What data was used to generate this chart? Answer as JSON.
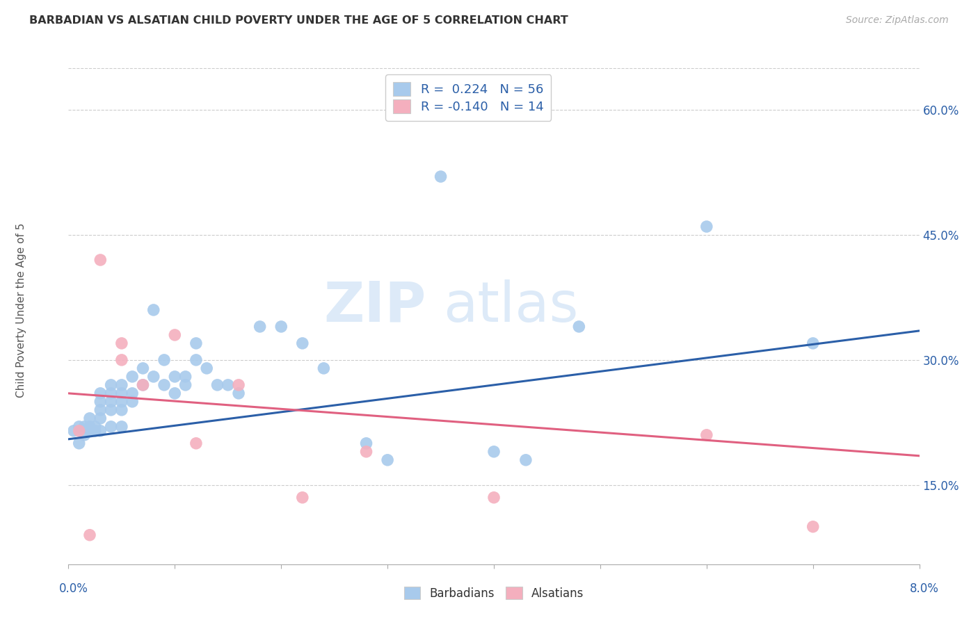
{
  "title": "BARBADIAN VS ALSATIAN CHILD POVERTY UNDER THE AGE OF 5 CORRELATION CHART",
  "source": "Source: ZipAtlas.com",
  "ylabel": "Child Poverty Under the Age of 5",
  "ytick_vals": [
    0.15,
    0.3,
    0.45,
    0.6
  ],
  "ytick_labels": [
    "15.0%",
    "30.0%",
    "45.0%",
    "60.0%"
  ],
  "xlim": [
    0.0,
    0.08
  ],
  "ylim": [
    0.055,
    0.65
  ],
  "watermark_line1": "ZIP",
  "watermark_line2": "atlas",
  "blue_scatter_color": "#A8CAEC",
  "pink_scatter_color": "#F4AFBE",
  "blue_line_color": "#2B5FA8",
  "pink_line_color": "#E06080",
  "barbadians_x": [
    0.0005,
    0.001,
    0.001,
    0.0015,
    0.0015,
    0.002,
    0.002,
    0.002,
    0.0025,
    0.0025,
    0.003,
    0.003,
    0.003,
    0.003,
    0.003,
    0.004,
    0.004,
    0.004,
    0.004,
    0.004,
    0.005,
    0.005,
    0.005,
    0.005,
    0.005,
    0.006,
    0.006,
    0.006,
    0.007,
    0.007,
    0.008,
    0.008,
    0.009,
    0.009,
    0.01,
    0.01,
    0.011,
    0.011,
    0.012,
    0.012,
    0.013,
    0.014,
    0.015,
    0.016,
    0.018,
    0.02,
    0.022,
    0.024,
    0.028,
    0.03,
    0.035,
    0.04,
    0.043,
    0.048,
    0.06,
    0.07
  ],
  "barbadians_y": [
    0.215,
    0.22,
    0.2,
    0.22,
    0.21,
    0.23,
    0.22,
    0.215,
    0.22,
    0.215,
    0.26,
    0.25,
    0.24,
    0.23,
    0.215,
    0.27,
    0.26,
    0.25,
    0.24,
    0.22,
    0.27,
    0.26,
    0.25,
    0.24,
    0.22,
    0.28,
    0.26,
    0.25,
    0.29,
    0.27,
    0.36,
    0.28,
    0.3,
    0.27,
    0.28,
    0.26,
    0.28,
    0.27,
    0.32,
    0.3,
    0.29,
    0.27,
    0.27,
    0.26,
    0.34,
    0.34,
    0.32,
    0.29,
    0.2,
    0.18,
    0.52,
    0.19,
    0.18,
    0.34,
    0.46,
    0.32
  ],
  "alsatians_x": [
    0.001,
    0.002,
    0.003,
    0.005,
    0.005,
    0.007,
    0.01,
    0.012,
    0.016,
    0.022,
    0.028,
    0.04,
    0.06,
    0.07
  ],
  "alsatians_y": [
    0.215,
    0.09,
    0.42,
    0.32,
    0.3,
    0.27,
    0.33,
    0.2,
    0.27,
    0.135,
    0.19,
    0.135,
    0.21,
    0.1
  ],
  "blue_line_x": [
    0.0,
    0.08
  ],
  "blue_line_y": [
    0.205,
    0.335
  ],
  "pink_line_x": [
    0.0,
    0.08
  ],
  "pink_line_y": [
    0.26,
    0.185
  ]
}
